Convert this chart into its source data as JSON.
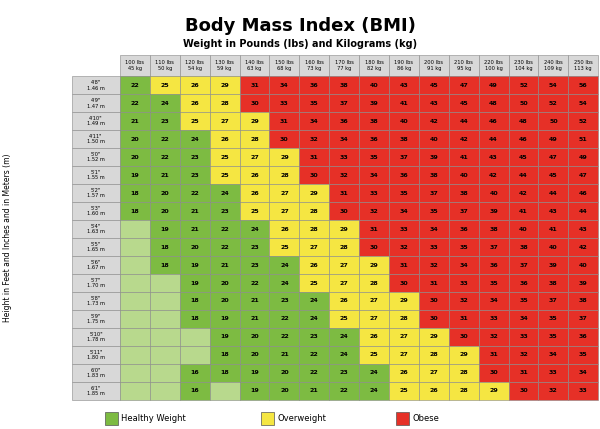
{
  "title": "Body Mass Index (BMI)",
  "subtitle": "Weight in Pounds (lbs) and Kilograms (kg)",
  "col_labels": [
    "100 lbs\n45 kg",
    "110 lbs\n50 kg",
    "120 lbs\n54 kg",
    "130 lbs\n59 kg",
    "140 lbs\n63 kg",
    "150 lbs\n68 kg",
    "160 lbs\n73 kg",
    "170 lbs\n77 kg",
    "180 lbs\n82 kg",
    "190 lbs\n86 kg",
    "200 lbs\n91 kg",
    "210 lbs\n95 kg",
    "220 lbs\n100 kg",
    "230 lbs\n104 kg",
    "240 lbs\n109 kg",
    "250 lbs\n113 kg"
  ],
  "row_labels": [
    "4'8\"\n1.46 m",
    "4'9\"\n1.47 m",
    "4'10\"\n1.49 m",
    "4'11\"\n1.50 m",
    "5'0\"\n1.52 m",
    "5'1\"\n1.55 m",
    "5'2\"\n1.57 m",
    "5'3\"\n1.60 m",
    "5'4\"\n1.63 m",
    "5'5\"\n1.65 m",
    "5'6\"\n1.67 m",
    "5'7\"\n1.70 m",
    "5'8\"\n1.73 m",
    "5'9\"\n1.75 m",
    "5'10\"\n1.78 m",
    "5'11\"\n1.80 m",
    "6'0\"\n1.83 m",
    "6'1\"\n1.85 m"
  ],
  "bmi_data": [
    [
      22,
      25,
      26,
      29,
      31,
      34,
      36,
      38,
      40,
      43,
      45,
      47,
      49,
      52,
      54,
      56
    ],
    [
      22,
      24,
      26,
      28,
      30,
      33,
      35,
      37,
      39,
      41,
      43,
      45,
      48,
      50,
      52,
      54
    ],
    [
      21,
      23,
      25,
      27,
      29,
      31,
      34,
      36,
      38,
      40,
      42,
      44,
      46,
      48,
      50,
      52
    ],
    [
      20,
      22,
      24,
      26,
      28,
      30,
      32,
      34,
      36,
      38,
      40,
      42,
      44,
      46,
      49,
      51
    ],
    [
      20,
      22,
      23,
      25,
      27,
      29,
      31,
      33,
      35,
      37,
      39,
      41,
      43,
      45,
      47,
      49
    ],
    [
      19,
      21,
      23,
      25,
      26,
      28,
      30,
      32,
      34,
      36,
      38,
      40,
      42,
      44,
      45,
      47
    ],
    [
      18,
      20,
      22,
      24,
      26,
      27,
      29,
      31,
      33,
      35,
      37,
      38,
      40,
      42,
      44,
      46
    ],
    [
      18,
      20,
      21,
      23,
      25,
      27,
      28,
      30,
      32,
      34,
      35,
      37,
      39,
      41,
      43,
      44
    ],
    [
      null,
      19,
      21,
      22,
      24,
      26,
      28,
      29,
      31,
      33,
      34,
      36,
      38,
      40,
      41,
      43
    ],
    [
      null,
      18,
      20,
      22,
      23,
      25,
      27,
      28,
      30,
      32,
      33,
      35,
      37,
      38,
      40,
      42
    ],
    [
      null,
      18,
      19,
      21,
      23,
      24,
      26,
      27,
      29,
      31,
      32,
      34,
      36,
      37,
      39,
      40
    ],
    [
      null,
      null,
      19,
      20,
      22,
      24,
      25,
      27,
      28,
      30,
      31,
      33,
      35,
      36,
      38,
      39
    ],
    [
      null,
      null,
      18,
      20,
      21,
      23,
      24,
      26,
      27,
      29,
      30,
      32,
      34,
      35,
      37,
      38
    ],
    [
      null,
      null,
      18,
      19,
      21,
      22,
      24,
      25,
      27,
      28,
      30,
      31,
      33,
      34,
      35,
      37
    ],
    [
      null,
      null,
      null,
      19,
      20,
      22,
      23,
      24,
      26,
      27,
      29,
      30,
      32,
      33,
      35,
      36
    ],
    [
      null,
      null,
      null,
      18,
      20,
      21,
      22,
      24,
      25,
      27,
      28,
      29,
      31,
      32,
      34,
      35
    ],
    [
      null,
      null,
      16,
      18,
      19,
      20,
      22,
      23,
      24,
      26,
      27,
      28,
      30,
      31,
      33,
      34
    ],
    [
      null,
      null,
      16,
      null,
      19,
      20,
      21,
      22,
      24,
      25,
      26,
      28,
      29,
      30,
      32,
      33
    ]
  ],
  "color_healthy": "#7dbb42",
  "color_healthy_light": "#b8d98d",
  "color_overweight": "#f5e642",
  "color_obese": "#e63027",
  "color_header": "#d8d8d8",
  "color_border": "#888888",
  "bg_color": "#ffffff",
  "ylabel": "Height in Feet and Inches and in Meters (m)",
  "legend_items": [
    {
      "color": "#7dbb42",
      "label": "Healthy Weight"
    },
    {
      "color": "#f5e642",
      "label": "Overweight"
    },
    {
      "color": "#e63027",
      "label": "Obese"
    }
  ],
  "title_fontsize": 13,
  "subtitle_fontsize": 7,
  "cell_fontsize": 4.5,
  "header_fontsize": 3.7,
  "ylabel_fontsize": 5.5,
  "legend_fontsize": 6.0
}
